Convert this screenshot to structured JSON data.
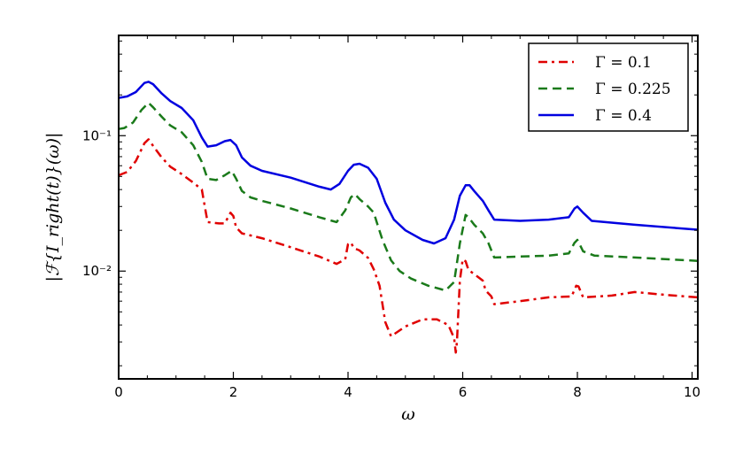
{
  "chart_data": {
    "type": "line",
    "xlabel": "ω",
    "ylabel": "|ℱ{I_right(t)}(ω)|",
    "xlim": [
      0,
      10.1
    ],
    "ylim": [
      0.0016,
      0.55
    ],
    "yscale": "log",
    "grid": false,
    "legend_position": "top-right",
    "x_ticks": [
      0,
      2,
      4,
      6,
      8,
      10
    ],
    "x_tick_labels": [
      "0",
      "2",
      "4",
      "6",
      "8",
      "10"
    ],
    "y_ticks": [
      0.01,
      0.1
    ],
    "y_tick_labels": [
      "10⁻²",
      "10⁻¹"
    ],
    "series": [
      {
        "name": "Γ = 0.1",
        "color": "#e00000",
        "style": "dashdot",
        "points": [
          [
            0,
            0.051
          ],
          [
            0.15,
            0.054
          ],
          [
            0.3,
            0.065
          ],
          [
            0.45,
            0.088
          ],
          [
            0.52,
            0.094
          ],
          [
            0.6,
            0.084
          ],
          [
            0.75,
            0.069
          ],
          [
            0.9,
            0.059
          ],
          [
            1.1,
            0.052
          ],
          [
            1.3,
            0.045
          ],
          [
            1.45,
            0.04
          ],
          [
            1.55,
            0.023
          ],
          [
            1.75,
            0.0225
          ],
          [
            1.85,
            0.0225
          ],
          [
            1.95,
            0.027
          ],
          [
            2.0,
            0.0255
          ],
          [
            2.05,
            0.021
          ],
          [
            2.15,
            0.019
          ],
          [
            2.5,
            0.0175
          ],
          [
            3.0,
            0.015
          ],
          [
            3.5,
            0.0128
          ],
          [
            3.8,
            0.0113
          ],
          [
            3.95,
            0.0122
          ],
          [
            4.0,
            0.0158
          ],
          [
            4.05,
            0.0163
          ],
          [
            4.1,
            0.0148
          ],
          [
            4.2,
            0.0142
          ],
          [
            4.35,
            0.0125
          ],
          [
            4.45,
            0.0103
          ],
          [
            4.55,
            0.0078
          ],
          [
            4.65,
            0.0042
          ],
          [
            4.75,
            0.0033
          ],
          [
            5.0,
            0.0039
          ],
          [
            5.3,
            0.0044
          ],
          [
            5.55,
            0.0044
          ],
          [
            5.75,
            0.004
          ],
          [
            5.85,
            0.0032
          ],
          [
            5.88,
            0.0025
          ],
          [
            5.9,
            0.003
          ],
          [
            5.95,
            0.0085
          ],
          [
            6.0,
            0.0122
          ],
          [
            6.05,
            0.0118
          ],
          [
            6.1,
            0.0102
          ],
          [
            6.2,
            0.0095
          ],
          [
            6.35,
            0.0085
          ],
          [
            6.4,
            0.0072
          ],
          [
            6.5,
            0.0065
          ],
          [
            6.55,
            0.0057
          ],
          [
            7.0,
            0.006
          ],
          [
            7.5,
            0.0064
          ],
          [
            7.9,
            0.0065
          ],
          [
            7.98,
            0.0078
          ],
          [
            8.02,
            0.0077
          ],
          [
            8.1,
            0.0064
          ],
          [
            8.6,
            0.0066
          ],
          [
            9.0,
            0.007
          ],
          [
            9.5,
            0.0067
          ],
          [
            10.1,
            0.0064
          ]
        ]
      },
      {
        "name": "Γ = 0.225",
        "color": "#1a7a1a",
        "style": "dashed",
        "points": [
          [
            0,
            0.112
          ],
          [
            0.1,
            0.114
          ],
          [
            0.25,
            0.125
          ],
          [
            0.4,
            0.155
          ],
          [
            0.52,
            0.175
          ],
          [
            0.6,
            0.162
          ],
          [
            0.75,
            0.138
          ],
          [
            0.9,
            0.119
          ],
          [
            1.1,
            0.106
          ],
          [
            1.3,
            0.085
          ],
          [
            1.45,
            0.064
          ],
          [
            1.55,
            0.048
          ],
          [
            1.7,
            0.047
          ],
          [
            1.85,
            0.051
          ],
          [
            1.97,
            0.055
          ],
          [
            2.05,
            0.048
          ],
          [
            2.15,
            0.039
          ],
          [
            2.3,
            0.035
          ],
          [
            2.5,
            0.033
          ],
          [
            3.0,
            0.029
          ],
          [
            3.5,
            0.025
          ],
          [
            3.8,
            0.023
          ],
          [
            3.95,
            0.028
          ],
          [
            4.05,
            0.035
          ],
          [
            4.12,
            0.037
          ],
          [
            4.2,
            0.034
          ],
          [
            4.35,
            0.03
          ],
          [
            4.45,
            0.027
          ],
          [
            4.5,
            0.023
          ],
          [
            4.6,
            0.017
          ],
          [
            4.75,
            0.012
          ],
          [
            4.9,
            0.01
          ],
          [
            5.1,
            0.0088
          ],
          [
            5.4,
            0.0078
          ],
          [
            5.7,
            0.0072
          ],
          [
            5.85,
            0.0083
          ],
          [
            5.95,
            0.016
          ],
          [
            6.05,
            0.026
          ],
          [
            6.1,
            0.025
          ],
          [
            6.2,
            0.022
          ],
          [
            6.35,
            0.019
          ],
          [
            6.45,
            0.016
          ],
          [
            6.55,
            0.0126
          ],
          [
            7.0,
            0.0128
          ],
          [
            7.5,
            0.013
          ],
          [
            7.85,
            0.0135
          ],
          [
            7.95,
            0.0162
          ],
          [
            8.0,
            0.017
          ],
          [
            8.1,
            0.014
          ],
          [
            8.3,
            0.013
          ],
          [
            9.0,
            0.0126
          ],
          [
            10.1,
            0.0119
          ]
        ]
      },
      {
        "name": "Γ = 0.4",
        "color": "#0000e0",
        "style": "solid",
        "points": [
          [
            0,
            0.19
          ],
          [
            0.15,
            0.195
          ],
          [
            0.3,
            0.21
          ],
          [
            0.45,
            0.245
          ],
          [
            0.52,
            0.25
          ],
          [
            0.6,
            0.24
          ],
          [
            0.75,
            0.205
          ],
          [
            0.9,
            0.18
          ],
          [
            1.1,
            0.16
          ],
          [
            1.3,
            0.13
          ],
          [
            1.45,
            0.097
          ],
          [
            1.55,
            0.083
          ],
          [
            1.7,
            0.085
          ],
          [
            1.85,
            0.091
          ],
          [
            1.95,
            0.093
          ],
          [
            2.05,
            0.085
          ],
          [
            2.15,
            0.069
          ],
          [
            2.3,
            0.06
          ],
          [
            2.5,
            0.055
          ],
          [
            3.0,
            0.049
          ],
          [
            3.5,
            0.042
          ],
          [
            3.7,
            0.04
          ],
          [
            3.85,
            0.044
          ],
          [
            4.0,
            0.055
          ],
          [
            4.1,
            0.061
          ],
          [
            4.2,
            0.062
          ],
          [
            4.35,
            0.058
          ],
          [
            4.5,
            0.048
          ],
          [
            4.65,
            0.032
          ],
          [
            4.8,
            0.024
          ],
          [
            5.0,
            0.02
          ],
          [
            5.3,
            0.017
          ],
          [
            5.5,
            0.016
          ],
          [
            5.7,
            0.0175
          ],
          [
            5.85,
            0.024
          ],
          [
            5.95,
            0.036
          ],
          [
            6.05,
            0.043
          ],
          [
            6.12,
            0.043
          ],
          [
            6.2,
            0.039
          ],
          [
            6.35,
            0.033
          ],
          [
            6.45,
            0.028
          ],
          [
            6.55,
            0.024
          ],
          [
            7.0,
            0.0235
          ],
          [
            7.5,
            0.024
          ],
          [
            7.85,
            0.025
          ],
          [
            7.95,
            0.029
          ],
          [
            8.0,
            0.03
          ],
          [
            8.1,
            0.027
          ],
          [
            8.25,
            0.0235
          ],
          [
            9.0,
            0.022
          ],
          [
            10.1,
            0.0202
          ]
        ]
      }
    ]
  }
}
